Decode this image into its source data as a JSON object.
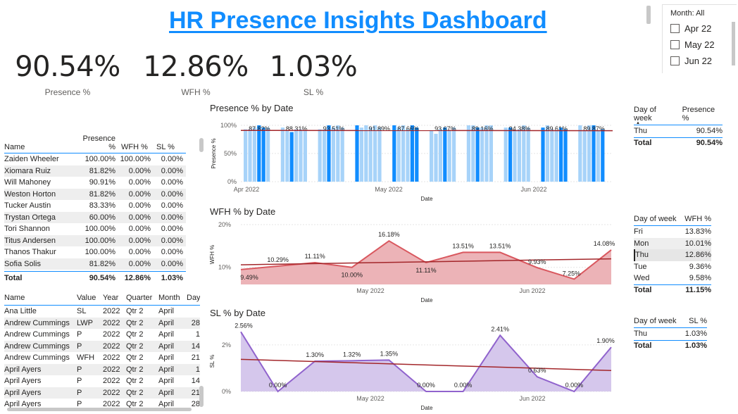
{
  "title": "HR Presence Insights Dashboard",
  "kpis": [
    {
      "value": "90.54%",
      "label": "Presence %"
    },
    {
      "value": "12.86%",
      "label": "WFH %"
    },
    {
      "value": "1.03%",
      "label": "SL %"
    }
  ],
  "slicer": {
    "header": "Month: All",
    "options": [
      "Apr 22",
      "May 22",
      "Jun 22"
    ]
  },
  "emp_table": {
    "headers": [
      "Name",
      "Presence %",
      "WFH %",
      "SL %"
    ],
    "rows": [
      [
        "Zaiden Wheeler",
        "100.00%",
        "100.00%",
        "0.00%"
      ],
      [
        "Xiomara Ruiz",
        "81.82%",
        "0.00%",
        "0.00%"
      ],
      [
        "Will Mahoney",
        "90.91%",
        "0.00%",
        "0.00%"
      ],
      [
        "Weston Horton",
        "81.82%",
        "0.00%",
        "0.00%"
      ],
      [
        "Tucker Austin",
        "83.33%",
        "0.00%",
        "0.00%"
      ],
      [
        "Trystan Ortega",
        "60.00%",
        "0.00%",
        "0.00%"
      ],
      [
        "Tori Shannon",
        "100.00%",
        "0.00%",
        "0.00%"
      ],
      [
        "Titus Andersen",
        "100.00%",
        "0.00%",
        "0.00%"
      ],
      [
        "Thanos Thakur",
        "100.00%",
        "0.00%",
        "0.00%"
      ],
      [
        "Sofia Solis",
        "81.82%",
        "0.00%",
        "0.00%"
      ]
    ],
    "total": [
      "Total",
      "90.54%",
      "12.86%",
      "1.03%"
    ]
  },
  "detail_table": {
    "headers": [
      "Name",
      "Value",
      "Year",
      "Quarter",
      "Month",
      "Day"
    ],
    "rows": [
      [
        "Ana Little",
        "SL",
        "2022",
        "Qtr 2",
        "April",
        ""
      ],
      [
        "Andrew Cummings",
        "LWP",
        "2022",
        "Qtr 2",
        "April",
        "28"
      ],
      [
        "Andrew Cummings",
        "P",
        "2022",
        "Qtr 2",
        "April",
        "1"
      ],
      [
        "Andrew Cummings",
        "P",
        "2022",
        "Qtr 2",
        "April",
        "14"
      ],
      [
        "Andrew Cummings",
        "WFH",
        "2022",
        "Qtr 2",
        "April",
        "21"
      ],
      [
        "April Ayers",
        "P",
        "2022",
        "Qtr 2",
        "April",
        "1"
      ],
      [
        "April Ayers",
        "P",
        "2022",
        "Qtr 2",
        "April",
        "14"
      ],
      [
        "April Ayers",
        "P",
        "2022",
        "Qtr 2",
        "April",
        "21"
      ],
      [
        "April Ayers",
        "P",
        "2022",
        "Qtr 2",
        "April",
        "28"
      ]
    ]
  },
  "chart_data": [
    {
      "type": "bar",
      "title": "Presence % by Date",
      "xlabel": "Date",
      "ylabel": "Presence %",
      "x_ticks": [
        "Apr 2022",
        "May 2022",
        "Jun 2022"
      ],
      "y_ticks": [
        "0%",
        "50%",
        "100%"
      ],
      "ylim": [
        0,
        100
      ],
      "group_labels": [
        "87.82%",
        "88.31%",
        "93.51%",
        "91.89%",
        "87.66%",
        "93.67%",
        "89.16%",
        "94.38%",
        "89.61%",
        "89.87%"
      ],
      "values": [
        93,
        93,
        96,
        100,
        96,
        96,
        96,
        90,
        88,
        93,
        93,
        90,
        93,
        93,
        100,
        96,
        100,
        96,
        100,
        96,
        100,
        96,
        100,
        96,
        100,
        96,
        100,
        93,
        100,
        96,
        90,
        85,
        93,
        96,
        90,
        96,
        100,
        100,
        96,
        96,
        100,
        100,
        96,
        96,
        90,
        93,
        100,
        96,
        96,
        100,
        93,
        90,
        96,
        93,
        100,
        90,
        100,
        100,
        90,
        93
      ],
      "highlight": [
        false,
        false,
        false,
        true,
        true,
        false,
        false,
        false,
        true,
        false,
        false,
        false,
        false,
        false,
        true,
        false,
        false,
        false,
        true,
        false,
        false,
        false,
        false,
        false,
        true,
        false,
        false,
        false,
        true,
        true,
        false,
        false,
        false,
        true,
        false,
        false,
        false,
        false,
        true,
        false,
        false,
        false,
        false,
        true,
        false,
        false,
        false,
        false,
        true,
        false,
        false,
        false,
        true,
        true,
        false,
        false,
        false,
        true,
        false,
        true
      ],
      "trend": [
        91,
        90.5
      ],
      "colors": {
        "bar": "#A7D3F9",
        "highlight": "#118DFF",
        "trend": "#A3262A"
      }
    },
    {
      "type": "area",
      "title": "WFH % by Date",
      "xlabel": "Date",
      "ylabel": "WFH %",
      "x_ticks": [
        "May 2022",
        "Jun 2022"
      ],
      "y_ticks": [
        "10%",
        "20%"
      ],
      "ylim": [
        6,
        20
      ],
      "values": [
        9.49,
        10.29,
        11.11,
        10.0,
        16.18,
        11.11,
        13.51,
        13.51,
        9.93,
        7.25,
        14.08
      ],
      "labels": [
        "9.49%",
        "10.29%",
        "11.11%",
        "10.00%",
        "16.18%",
        "11.11%",
        "13.51%",
        "13.51%",
        "9.93%",
        "7.25%",
        "14.08%"
      ],
      "trend": [
        10.6,
        12.0
      ],
      "colors": {
        "fill": "#ECB3B7",
        "line": "#D9585F",
        "trend": "#A3262A"
      }
    },
    {
      "type": "area",
      "title": "SL % by Date",
      "xlabel": "Date",
      "ylabel": "SL %",
      "x_ticks": [
        "May 2022",
        "Jun 2022"
      ],
      "y_ticks": [
        "0%",
        "2%"
      ],
      "ylim": [
        0,
        2.6
      ],
      "values": [
        2.56,
        0.0,
        1.3,
        1.32,
        1.35,
        0.0,
        0.0,
        2.41,
        0.63,
        0.0,
        1.9
      ],
      "labels": [
        "2.56%",
        "0.00%",
        "1.30%",
        "1.32%",
        "1.35%",
        "0.00%",
        "0.00%",
        "2.41%",
        "0.63%",
        "0.00%",
        "1.90%"
      ],
      "trend": [
        1.38,
        0.9
      ],
      "colors": {
        "fill": "#D5C7EC",
        "line": "#9063CD",
        "trend": "#A3262A"
      }
    }
  ],
  "dow_presence": {
    "headers": [
      "Day of week",
      "Presence %"
    ],
    "rows": [
      [
        "Thu",
        "90.54%"
      ]
    ],
    "total": [
      "Total",
      "90.54%"
    ]
  },
  "dow_wfh": {
    "headers": [
      "Day of week",
      "WFH %"
    ],
    "rows": [
      [
        "Fri",
        "13.83%"
      ],
      [
        "Mon",
        "10.01%"
      ],
      [
        "Thu",
        "12.86%"
      ],
      [
        "Tue",
        "9.36%"
      ],
      [
        "Wed",
        "9.58%"
      ]
    ],
    "total": [
      "Total",
      "11.15%"
    ]
  },
  "dow_sl": {
    "headers": [
      "Day of week",
      "SL %"
    ],
    "rows": [
      [
        "Thu",
        "1.03%"
      ]
    ],
    "total": [
      "Total",
      "1.03%"
    ]
  }
}
